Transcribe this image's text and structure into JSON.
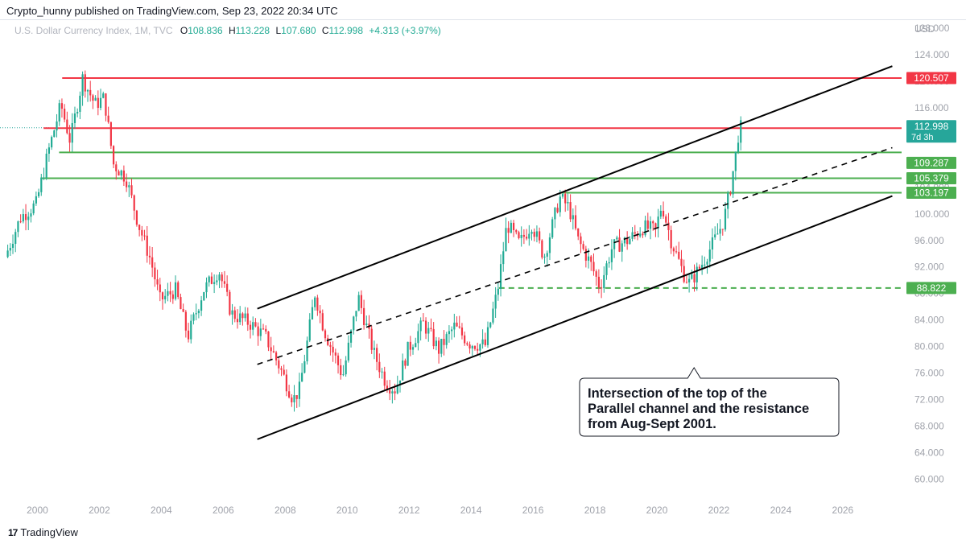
{
  "header": {
    "publisher_line": "Crypto_hunny published on TradingView.com, Sep 23, 2022 20:34 UTC"
  },
  "legend": {
    "symbol": "U.S. Dollar Currency Index, 1M, TVC",
    "o_label": "O",
    "o_value": "108.836",
    "h_label": "H",
    "h_value": "113.228",
    "l_label": "L",
    "l_value": "107.680",
    "c_label": "C",
    "c_value": "112.998",
    "change": "+4.313 (+3.97%)"
  },
  "footer": {
    "brand": "TradingView",
    "logo_glyph": "17"
  },
  "colors": {
    "up": "#22ab94",
    "down": "#f23645",
    "resistance_red": "#f23645",
    "support_green": "#4caf50",
    "label_red": "#f23645",
    "label_green": "#4caf50",
    "label_teal": "#26a69a",
    "axis_text": "#a0a3ab",
    "channel": "#000000"
  },
  "chart_data": {
    "type": "candlestick",
    "symbol": "U.S. Dollar Currency Index",
    "timeframe": "1M",
    "currency": "USD",
    "y_axis_label": "USD",
    "ylim": [
      57,
      129
    ],
    "xlim": [
      1999.0,
      2027.9
    ],
    "y_ticks": [
      "128.000",
      "124.000",
      "120.000",
      "116.000",
      "112.000",
      "108.000",
      "104.000",
      "100.000",
      "96.000",
      "92.000",
      "88.000",
      "84.000",
      "80.000",
      "76.000",
      "72.000",
      "68.000",
      "64.000",
      "60.000"
    ],
    "y_tick_values": [
      128,
      124,
      120,
      116,
      112,
      108,
      104,
      100,
      96,
      92,
      88,
      84,
      80,
      76,
      72,
      68,
      64,
      60
    ],
    "x_ticks": [
      "2000",
      "2002",
      "2004",
      "2006",
      "2008",
      "2010",
      "2012",
      "2014",
      "2016",
      "2018",
      "2020",
      "2022",
      "2024",
      "2026"
    ],
    "x_tick_values": [
      2000,
      2002,
      2004,
      2006,
      2008,
      2010,
      2012,
      2014,
      2016,
      2018,
      2020,
      2022,
      2024,
      2026
    ],
    "price_path": [
      [
        1999.0,
        93.5
      ],
      [
        1999.5,
        99.5
      ],
      [
        2000.0,
        101.5
      ],
      [
        2000.4,
        109.5
      ],
      [
        2000.8,
        116.5
      ],
      [
        2001.1,
        111.0
      ],
      [
        2001.5,
        120.5
      ],
      [
        2001.9,
        116.5
      ],
      [
        2002.2,
        117.5
      ],
      [
        2002.5,
        107.5
      ],
      [
        2002.9,
        105.5
      ],
      [
        2003.3,
        98.5
      ],
      [
        2003.7,
        93.0
      ],
      [
        2004.0,
        87.0
      ],
      [
        2004.5,
        88.5
      ],
      [
        2004.9,
        81.5
      ],
      [
        2005.4,
        88.5
      ],
      [
        2005.9,
        91.5
      ],
      [
        2006.3,
        85.0
      ],
      [
        2006.9,
        83.5
      ],
      [
        2007.4,
        81.5
      ],
      [
        2007.9,
        76.5
      ],
      [
        2008.3,
        72.0
      ],
      [
        2008.5,
        73.5
      ],
      [
        2008.8,
        82.0
      ],
      [
        2009.0,
        88.0
      ],
      [
        2009.3,
        82.5
      ],
      [
        2009.9,
        75.5
      ],
      [
        2010.4,
        87.5
      ],
      [
        2010.9,
        79.0
      ],
      [
        2011.3,
        74.5
      ],
      [
        2011.6,
        73.5
      ],
      [
        2012.0,
        79.5
      ],
      [
        2012.5,
        83.5
      ],
      [
        2013.0,
        79.5
      ],
      [
        2013.5,
        83.0
      ],
      [
        2014.0,
        80.5
      ],
      [
        2014.5,
        80.2
      ],
      [
        2014.9,
        88.5
      ],
      [
        2015.2,
        98.5
      ],
      [
        2015.6,
        95.5
      ],
      [
        2016.0,
        98.5
      ],
      [
        2016.4,
        93.5
      ],
      [
        2016.9,
        102.5
      ],
      [
        2017.2,
        101.0
      ],
      [
        2017.5,
        96.0
      ],
      [
        2017.9,
        92.5
      ],
      [
        2018.2,
        89.0
      ],
      [
        2018.6,
        95.0
      ],
      [
        2019.1,
        96.0
      ],
      [
        2019.6,
        98.0
      ],
      [
        2020.0,
        97.5
      ],
      [
        2020.2,
        101.5
      ],
      [
        2020.5,
        96.0
      ],
      [
        2020.9,
        91.0
      ],
      [
        2021.1,
        89.5
      ],
      [
        2021.5,
        92.5
      ],
      [
        2021.9,
        96.0
      ],
      [
        2022.2,
        99.0
      ],
      [
        2022.4,
        103.5
      ],
      [
        2022.58,
        108.8
      ],
      [
        2022.7,
        113.0
      ]
    ],
    "horizontal_levels": [
      {
        "value": 120.507,
        "label": "120.507",
        "style": "solid",
        "color": "red",
        "x_start": 2000.8
      },
      {
        "value": 112.943,
        "label": "112.943",
        "style": "solid",
        "color": "red",
        "x_start": 2000.2
      },
      {
        "value": 109.287,
        "label": "109.287",
        "style": "solid",
        "color": "green",
        "x_start": 2000.7
      },
      {
        "value": 105.379,
        "label": "105.379",
        "style": "solid",
        "color": "green",
        "x_start": 2000.1
      },
      {
        "value": 103.197,
        "label": "103.197",
        "style": "solid",
        "color": "green",
        "x_start": 2016.9
      },
      {
        "value": 88.822,
        "label": "88.822",
        "style": "dashed",
        "color": "green",
        "x_start": 2014.9
      }
    ],
    "last_price": {
      "value": 112.998,
      "label": "112.998",
      "countdown": "7d 3h"
    },
    "channel": {
      "upper": [
        [
          2007.1,
          85.7
        ],
        [
          2027.6,
          122.3
        ]
      ],
      "lower": [
        [
          2007.1,
          66.0
        ],
        [
          2027.6,
          102.7
        ]
      ],
      "middle": [
        [
          2007.1,
          77.3
        ],
        [
          2027.6,
          110.0
        ]
      ]
    },
    "annotation": {
      "lines": [
        "Intersection of the top of the",
        "Parallel channel and the resistance",
        "from Aug-Sept 2001."
      ],
      "anchor_x": 2021.2,
      "anchor_y": 76.8
    }
  }
}
